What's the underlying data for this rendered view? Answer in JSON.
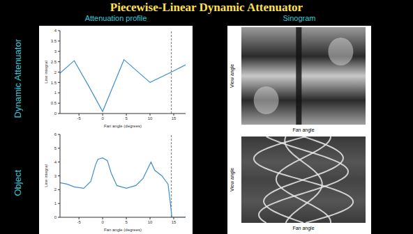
{
  "slide": {
    "title": "Piecewise-Linear Dynamic Attenuator",
    "column_titles": [
      "Attenuation profile",
      "Sinogram"
    ],
    "row_labels": [
      "Dynamic Attenuator",
      "Object"
    ],
    "sinograms": [
      {
        "x_label": "Fan angle",
        "y_label": "View angle"
      },
      {
        "x_label": "Fan angle",
        "y_label": "View angle"
      }
    ]
  },
  "chart_data": [
    {
      "type": "line",
      "x_label": "Fan angle (degrees)",
      "y_label": "Line integral",
      "x": [
        -9,
        -6,
        -3,
        0,
        4.5,
        10,
        14.5,
        17.5
      ],
      "values": [
        1.95,
        2.55,
        1.35,
        0.1,
        2.6,
        1.5,
        2.0,
        2.35
      ],
      "xlim": [
        -9,
        17.5
      ],
      "ylim": [
        0,
        4
      ],
      "xticks": [
        -5,
        0,
        5,
        10,
        15
      ],
      "yticks": [
        0,
        0.5,
        1,
        1.5,
        2,
        2.5,
        3,
        3.5,
        4
      ],
      "color": "#3d8fd1",
      "vlines": [
        14.5
      ]
    },
    {
      "type": "line",
      "x_label": "Fan angle (degrees)",
      "y_label": "Line integral",
      "x": [
        -9,
        -7.5,
        -6,
        -4,
        -2.5,
        -1.5,
        -1,
        0,
        1,
        1.8,
        3,
        5,
        7,
        8.5,
        9.5,
        10.2,
        11,
        12.5,
        13.8,
        14.3,
        14.6,
        15.5,
        17.5
      ],
      "values": [
        2.5,
        2.4,
        2.2,
        2.1,
        2.6,
        3.8,
        4.2,
        4.3,
        4.1,
        3.2,
        2.3,
        2.1,
        2.3,
        2.8,
        3.5,
        4.0,
        3.4,
        3.0,
        2.4,
        1.0,
        0,
        0,
        0
      ],
      "xlim": [
        -9,
        17.5
      ],
      "ylim": [
        0,
        6
      ],
      "xticks": [
        -5,
        0,
        5,
        10,
        15
      ],
      "yticks": [
        0,
        1,
        2,
        3,
        4,
        5,
        6
      ],
      "color": "#3d8fd1",
      "vlines": [
        14.5
      ]
    }
  ]
}
